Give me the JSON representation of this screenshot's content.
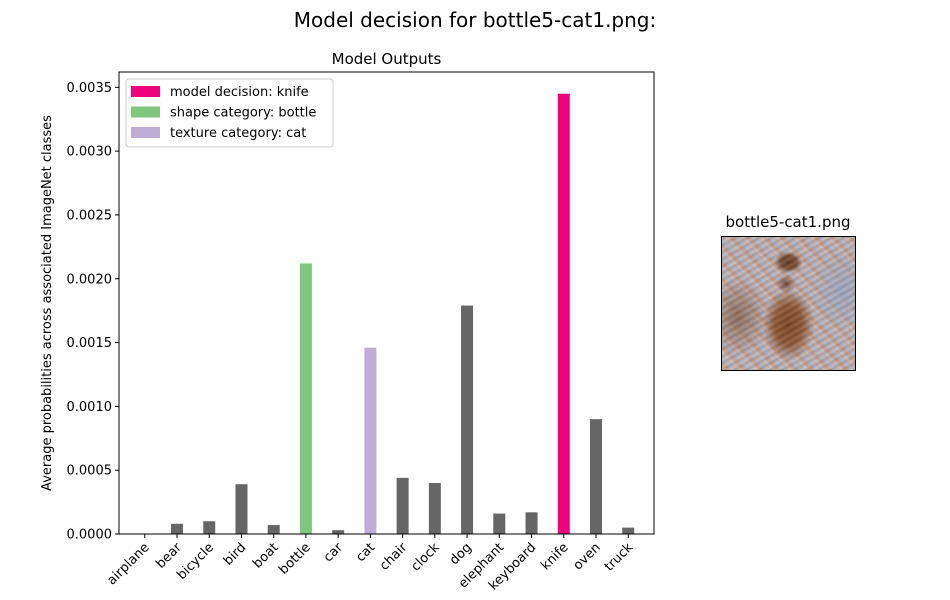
{
  "figure": {
    "suptitle": "Model decision for bottle5-cat1.png:",
    "thumbnail_title": "bottle5-cat1.png"
  },
  "chart_data": {
    "type": "bar",
    "title": "Model Outputs",
    "xlabel": "",
    "ylabel": "Average probabilities across associated ImageNet classes",
    "categories": [
      "airplane",
      "bear",
      "bicycle",
      "bird",
      "boat",
      "bottle",
      "car",
      "cat",
      "chair",
      "clock",
      "dog",
      "elephant",
      "keyboard",
      "knife",
      "oven",
      "truck"
    ],
    "values": [
      0.0,
      8e-05,
      0.0001,
      0.00039,
      7e-05,
      0.00212,
      3e-05,
      0.00146,
      0.00044,
      0.0004,
      0.00179,
      0.00016,
      0.00017,
      0.00345,
      0.0009,
      5e-05
    ],
    "bar_colors": [
      "#666666",
      "#666666",
      "#666666",
      "#666666",
      "#666666",
      "#7fc97f",
      "#666666",
      "#beaed4",
      "#666666",
      "#666666",
      "#666666",
      "#666666",
      "#666666",
      "#f0027f",
      "#666666",
      "#666666"
    ],
    "ylim": [
      0,
      0.00362
    ],
    "yticks": [
      0.0,
      0.0005,
      0.001,
      0.0015,
      0.002,
      0.0025,
      0.003,
      0.0035
    ],
    "ytick_labels": [
      "0.0000",
      "0.0005",
      "0.0010",
      "0.0015",
      "0.0020",
      "0.0025",
      "0.0030",
      "0.0035"
    ],
    "grid": false,
    "legend": {
      "placement": "top-left",
      "entries": [
        {
          "label": "model decision: knife",
          "color": "#f0027f"
        },
        {
          "label": "shape category: bottle",
          "color": "#7fc97f"
        },
        {
          "label": "texture category: cat",
          "color": "#beaed4"
        }
      ]
    }
  }
}
